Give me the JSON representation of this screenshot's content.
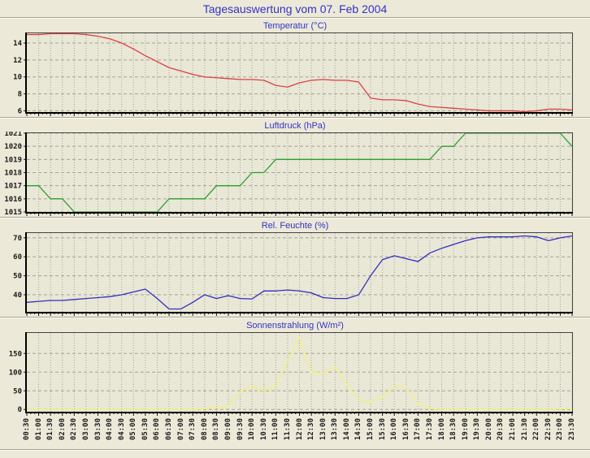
{
  "page": {
    "title": "Tagesauswertung vom 07. Feb 2004"
  },
  "colors": {
    "page_bg": "#ece9d8",
    "plot_bg": "#e9e7d6",
    "grid": "#a5a396",
    "axis": "#000000",
    "title_text": "#3232c8"
  },
  "chart_data": {
    "type": "line",
    "grid": "on",
    "legend": "none",
    "x_label_rotation": -90,
    "categories": [
      "00:30",
      "01:00",
      "01:30",
      "02:00",
      "02:30",
      "03:00",
      "03:30",
      "04:00",
      "04:30",
      "05:00",
      "05:30",
      "06:00",
      "06:30",
      "07:00",
      "07:30",
      "08:00",
      "08:30",
      "09:00",
      "09:30",
      "10:00",
      "10:30",
      "11:00",
      "11:30",
      "12:00",
      "12:30",
      "13:00",
      "13:30",
      "14:00",
      "14:30",
      "15:00",
      "15:30",
      "16:00",
      "16:30",
      "17:00",
      "17:30",
      "18:00",
      "18:30",
      "19:00",
      "19:30",
      "20:00",
      "20:30",
      "21:00",
      "21:30",
      "22:00",
      "22:30",
      "23:00",
      "23:30"
    ],
    "charts": [
      {
        "type": "line",
        "title": "Temperatur (°C)",
        "color": "#dd4040",
        "ylim": [
          5.85,
          15.15
        ],
        "yticks": [
          6,
          8,
          10,
          12,
          14
        ],
        "values": [
          15.0,
          15.0,
          15.1,
          15.1,
          15.1,
          15.0,
          14.8,
          14.5,
          14.0,
          13.3,
          12.5,
          11.8,
          11.1,
          10.7,
          10.3,
          10.0,
          9.9,
          9.8,
          9.7,
          9.7,
          9.6,
          9.0,
          8.8,
          9.3,
          9.6,
          9.7,
          9.6,
          9.6,
          9.4,
          7.5,
          7.3,
          7.3,
          7.2,
          6.8,
          6.5,
          6.4,
          6.3,
          6.2,
          6.1,
          6.0,
          6.0,
          6.0,
          5.9,
          6.0,
          6.2,
          6.2,
          6.1
        ]
      },
      {
        "type": "line",
        "title": "Luftdruck (hPa)",
        "color": "#2ba02b",
        "ylim": [
          1015,
          1021
        ],
        "yticks": [
          1015,
          1016,
          1017,
          1018,
          1019,
          1020,
          1021
        ],
        "values": [
          1017,
          1017,
          1016,
          1016,
          1015,
          1015,
          1015,
          1015,
          1015,
          1015,
          1015,
          1015,
          1016,
          1016,
          1016,
          1016,
          1017,
          1017,
          1017,
          1018,
          1018,
          1019,
          1019,
          1019,
          1019,
          1019,
          1019,
          1019,
          1019,
          1019,
          1019,
          1019,
          1019,
          1019,
          1019,
          1020,
          1020,
          1021,
          1021,
          1021,
          1021,
          1021,
          1021,
          1021,
          1021,
          1021,
          1020
        ]
      },
      {
        "type": "line",
        "title": "Rel. Feuchte (%)",
        "color": "#3030c0",
        "ylim": [
          31,
          72.5
        ],
        "yticks": [
          40,
          50,
          60,
          70
        ],
        "values": [
          36,
          36.5,
          37,
          37,
          37.5,
          38,
          38.5,
          39,
          40,
          41.5,
          43,
          38,
          32.5,
          32.5,
          36,
          40,
          38,
          39.5,
          38,
          37.8,
          42,
          42,
          42.5,
          42,
          41,
          38.5,
          38,
          38,
          40,
          50,
          58.5,
          60.5,
          59,
          57.5,
          62,
          64.5,
          66.5,
          68.5,
          70,
          70.5,
          70.5,
          70.5,
          71,
          70.5,
          68.5,
          70,
          71
        ]
      },
      {
        "type": "line",
        "title": "Sonnenstrahlung (W/m²)",
        "color": "#f2f27a",
        "ylim": [
          -6,
          205
        ],
        "yticks": [
          0,
          50,
          100,
          150
        ],
        "values": [
          0,
          0,
          0,
          0,
          0,
          0,
          0,
          0,
          0,
          0,
          0,
          0,
          0,
          0,
          0,
          2,
          5,
          8,
          48,
          62,
          50,
          62,
          130,
          193,
          100,
          98,
          115,
          67,
          25,
          22,
          33,
          63,
          60,
          15,
          3,
          0,
          0,
          0,
          0,
          0,
          0,
          0,
          0,
          0,
          0,
          2,
          2
        ]
      }
    ]
  }
}
